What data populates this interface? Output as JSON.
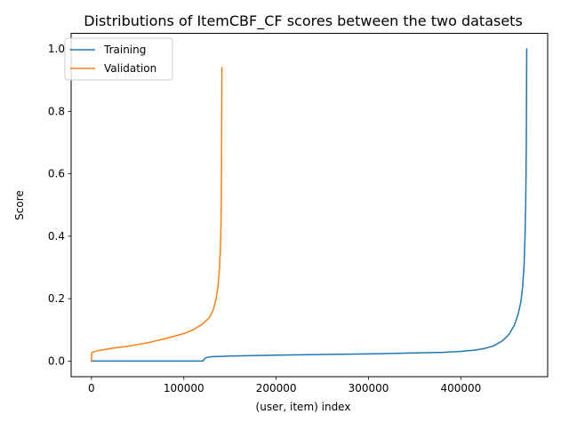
{
  "chart_data": {
    "type": "line",
    "title": "Distributions of ItemCBF_CF scores between the two datasets",
    "xlabel": "(user, item) index",
    "ylabel": "Score",
    "xlim": [
      -22000,
      494000
    ],
    "ylim": [
      -0.05,
      1.05
    ],
    "xticks": [
      0,
      100000,
      200000,
      300000,
      400000
    ],
    "xtick_labels": [
      "0",
      "100000",
      "200000",
      "300000",
      "400000"
    ],
    "yticks": [
      0.0,
      0.2,
      0.4,
      0.6,
      0.8,
      1.0
    ],
    "ytick_labels": [
      "0.0",
      "0.2",
      "0.4",
      "0.6",
      "0.8",
      "1.0"
    ],
    "grid": false,
    "legend_position": "top-left",
    "series": [
      {
        "name": "Training",
        "color": "#1f77b4",
        "x": [
          0,
          100000,
          121000,
          122500,
          125000,
          130000,
          150000,
          200000,
          250000,
          300000,
          350000,
          380000,
          400000,
          415000,
          425000,
          435000,
          445000,
          452000,
          458000,
          462000,
          465000,
          467000,
          468500,
          469500,
          470200,
          470600,
          470900,
          471100,
          471300
        ],
        "y": [
          0.0,
          0.0,
          0.0,
          0.008,
          0.012,
          0.014,
          0.016,
          0.019,
          0.021,
          0.023,
          0.026,
          0.028,
          0.031,
          0.035,
          0.04,
          0.048,
          0.065,
          0.085,
          0.115,
          0.15,
          0.19,
          0.24,
          0.31,
          0.4,
          0.5,
          0.6,
          0.7,
          0.85,
          1.0
        ]
      },
      {
        "name": "Validation",
        "color": "#ff7f0e",
        "x": [
          0,
          300,
          1000,
          5000,
          20000,
          40000,
          60000,
          80000,
          100000,
          110000,
          120000,
          128000,
          132000,
          135000,
          137000,
          138500,
          139500,
          140200,
          140600,
          140900,
          141100,
          141300
        ],
        "y": [
          0.0,
          0.025,
          0.028,
          0.032,
          0.04,
          0.048,
          0.058,
          0.072,
          0.088,
          0.1,
          0.118,
          0.14,
          0.165,
          0.2,
          0.24,
          0.29,
          0.35,
          0.42,
          0.52,
          0.65,
          0.8,
          0.94
        ]
      }
    ]
  }
}
